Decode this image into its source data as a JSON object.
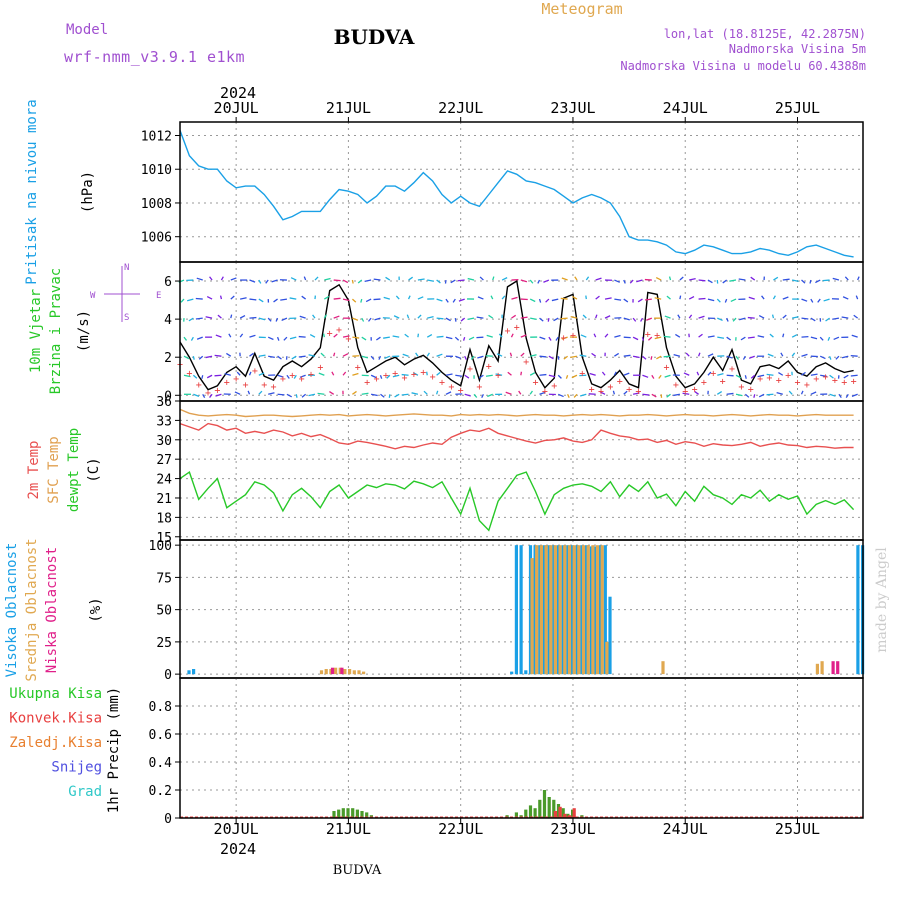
{
  "header": {
    "model_label": "Model",
    "model_name": "wrf-nmm_v3.9.1 e1km",
    "station": "BUDVA",
    "meteogram_label": "Meteogram",
    "lonlat": "lon,lat (18.8125E, 42.2875N)",
    "elevation": "Nadmorska Visina 5m",
    "model_elevation": "Nadmorska Visina u modelu 60.4388m",
    "year": "2024",
    "footer_station": "BUDVA",
    "credit": "made by Angel"
  },
  "colors": {
    "pressure": "#1aa0e6",
    "wind_speed": "#000000",
    "gust_marker": "#e84040",
    "temp2m": "#e85050",
    "sfc_temp": "#e0a050",
    "dewpoint": "#28c828",
    "cloud_high": "#1aa0e6",
    "cloud_mid": "#e0a850",
    "cloud_low": "#e0208a",
    "precip_total": "#4a9a2a",
    "precip_conv": "#e84040",
    "grid": "#999999",
    "frame": "#000000"
  },
  "chart_data": [
    {
      "id": "pressure",
      "type": "line",
      "ylabel_lines": [
        "Pritisak na nivou mora",
        "(hPa)"
      ],
      "ylim": [
        1004.5,
        1012.8
      ],
      "yticks": [
        1006,
        1008,
        1010,
        1012
      ],
      "x": [
        0,
        2,
        4,
        6,
        8,
        10,
        12,
        14,
        16,
        18,
        20,
        22,
        24,
        26,
        28,
        30,
        32,
        34,
        36,
        38,
        40,
        42,
        44,
        46,
        48,
        50,
        52,
        54,
        56,
        58,
        60,
        62,
        64,
        66,
        68,
        70,
        72,
        74,
        76,
        78,
        80,
        82,
        84,
        86,
        88,
        90,
        92,
        94,
        96,
        98,
        100,
        102,
        104,
        106,
        108,
        110,
        112,
        114,
        116,
        118,
        120,
        122,
        124,
        126,
        128,
        130,
        132,
        134,
        136,
        138,
        140,
        142,
        144
      ],
      "series": [
        {
          "values": [
            1012.3,
            1010.8,
            1010.2,
            1010.0,
            1010.0,
            1009.3,
            1008.9,
            1009.0,
            1009.0,
            1008.5,
            1007.8,
            1007.0,
            1007.2,
            1007.5,
            1007.5,
            1007.5,
            1008.2,
            1008.8,
            1008.7,
            1008.5,
            1008.0,
            1008.4,
            1009.0,
            1009.0,
            1008.7,
            1009.2,
            1009.8,
            1009.3,
            1008.5,
            1008.0,
            1008.4,
            1008.0,
            1007.8,
            1008.5,
            1009.2,
            1009.9,
            1009.7,
            1009.3,
            1009.2,
            1009.0,
            1008.8,
            1008.4,
            1008.0,
            1008.3,
            1008.5,
            1008.3,
            1008.0,
            1007.2,
            1006.0,
            1005.8,
            1005.8,
            1005.7,
            1005.5,
            1005.1,
            1005.0,
            1005.2,
            1005.5,
            1005.4,
            1005.2,
            1005.0,
            1005.0,
            1005.1,
            1005.3,
            1005.2,
            1005.0,
            1004.9,
            1005.1,
            1005.4,
            1005.5,
            1005.3,
            1005.1,
            1004.9,
            1004.8
          ]
        }
      ]
    },
    {
      "id": "wind",
      "type": "line",
      "ylabel_lines": [
        "10m Vjetar",
        "Brzina i Pravac",
        "(m/s)"
      ],
      "compass": {
        "w": "W",
        "e": "E",
        "n": "N",
        "s": "S"
      },
      "ylim": [
        -0.3,
        7.0
      ],
      "yticks": [
        0,
        2,
        4,
        6
      ],
      "x": [
        0,
        2,
        4,
        6,
        8,
        10,
        12,
        14,
        16,
        18,
        20,
        22,
        24,
        26,
        28,
        30,
        32,
        34,
        36,
        38,
        40,
        42,
        44,
        46,
        48,
        50,
        52,
        54,
        56,
        58,
        60,
        62,
        64,
        66,
        68,
        70,
        72,
        74,
        76,
        78,
        80,
        82,
        84,
        86,
        88,
        90,
        92,
        94,
        96,
        98,
        100,
        102,
        104,
        106,
        108,
        110,
        112,
        114,
        116,
        118,
        120,
        122,
        124,
        126,
        128,
        130,
        132,
        134,
        136,
        138,
        140,
        142,
        144
      ],
      "series": [
        {
          "name": "speed",
          "values": [
            2.8,
            2.0,
            1.0,
            0.3,
            0.5,
            1.2,
            1.5,
            1.0,
            2.2,
            1.0,
            0.8,
            1.5,
            1.8,
            1.5,
            1.9,
            2.5,
            5.5,
            5.8,
            5.0,
            2.5,
            1.2,
            1.5,
            1.8,
            2.0,
            1.6,
            1.9,
            2.1,
            1.7,
            1.2,
            0.8,
            0.5,
            2.4,
            0.8,
            2.6,
            1.8,
            5.7,
            6.0,
            3.0,
            1.2,
            0.4,
            0.9,
            5.1,
            5.3,
            2.0,
            0.6,
            0.4,
            0.8,
            1.3,
            0.6,
            0.4,
            5.4,
            5.3,
            2.5,
            1.0,
            0.4,
            0.6,
            1.2,
            2.0,
            1.3,
            2.4,
            0.8,
            0.6,
            1.5,
            1.6,
            1.4,
            1.8,
            1.2,
            1.0,
            1.5,
            1.7,
            1.4,
            1.2,
            1.3
          ]
        }
      ]
    },
    {
      "id": "temperature",
      "type": "line",
      "ylabel_lines": [
        "2m Temp",
        "SFC Temp",
        "dewpt Temp",
        "(C)"
      ],
      "ylim": [
        14.5,
        36.0
      ],
      "yticks": [
        15,
        18,
        21,
        24,
        27,
        30,
        33,
        36
      ],
      "x": [
        0,
        2,
        4,
        6,
        8,
        10,
        12,
        14,
        16,
        18,
        20,
        22,
        24,
        26,
        28,
        30,
        32,
        34,
        36,
        38,
        40,
        42,
        44,
        46,
        48,
        50,
        52,
        54,
        56,
        58,
        60,
        62,
        64,
        66,
        68,
        70,
        72,
        74,
        76,
        78,
        80,
        82,
        84,
        86,
        88,
        90,
        92,
        94,
        96,
        98,
        100,
        102,
        104,
        106,
        108,
        110,
        112,
        114,
        116,
        118,
        120,
        122,
        124,
        126,
        128,
        130,
        132,
        134,
        136,
        138,
        140,
        142,
        144
      ],
      "series": [
        {
          "name": "2m Temp",
          "values": [
            32.5,
            32.0,
            31.5,
            32.5,
            32.2,
            31.5,
            31.8,
            31.0,
            31.3,
            31.0,
            31.5,
            31.2,
            30.6,
            31.0,
            30.5,
            30.8,
            30.2,
            29.5,
            29.3,
            29.8,
            29.6,
            29.3,
            29.0,
            28.6,
            29.0,
            28.8,
            29.2,
            29.5,
            29.3,
            30.4,
            31.0,
            31.5,
            31.3,
            31.8,
            31.0,
            30.6,
            30.2,
            29.8,
            29.5,
            29.9,
            30.0,
            30.3,
            29.8,
            29.6,
            30.0,
            31.5,
            31.0,
            30.6,
            30.4,
            30.0,
            30.1,
            29.6,
            29.9,
            29.3,
            29.7,
            29.5,
            29.0,
            29.4,
            29.2,
            29.1,
            29.3,
            29.6,
            29.0,
            29.3,
            29.5,
            29.2,
            29.1,
            28.8,
            29.0,
            28.9,
            28.7,
            28.8,
            28.8
          ]
        },
        {
          "name": "SFC Temp",
          "values": [
            34.7,
            34.1,
            33.8,
            33.7,
            33.8,
            33.9,
            33.8,
            33.6,
            33.7,
            33.8,
            33.8,
            33.7,
            33.6,
            33.7,
            33.8,
            33.9,
            33.8,
            33.9,
            33.7,
            33.8,
            33.9,
            33.8,
            33.7,
            33.8,
            33.9,
            34.0,
            33.9,
            33.8,
            33.8,
            33.7,
            33.9,
            33.8,
            33.9,
            33.8,
            33.9,
            33.8,
            33.7,
            33.8,
            33.9,
            33.8,
            33.8,
            33.7,
            33.8,
            33.9,
            33.8,
            33.9,
            33.8,
            33.7,
            33.8,
            33.8,
            33.9,
            33.8,
            33.7,
            33.8,
            33.9,
            33.8,
            33.8,
            33.7,
            33.8,
            33.9,
            33.8,
            33.7,
            33.8,
            33.9,
            33.8,
            33.8,
            33.7,
            33.8,
            33.9,
            33.8,
            33.8,
            33.8,
            33.8
          ]
        },
        {
          "name": "dewpt Temp",
          "values": [
            24.0,
            25.0,
            20.8,
            22.5,
            24.0,
            19.5,
            20.5,
            21.5,
            23.5,
            23.0,
            21.8,
            19.0,
            21.5,
            22.5,
            21.2,
            19.5,
            22.0,
            23.0,
            21.0,
            22.0,
            23.0,
            22.6,
            23.2,
            23.0,
            22.4,
            23.6,
            23.2,
            22.6,
            23.5,
            21.0,
            18.5,
            22.5,
            17.5,
            16.0,
            20.5,
            22.5,
            24.5,
            25.0,
            22.0,
            18.5,
            21.5,
            22.5,
            23.0,
            23.2,
            22.8,
            22.0,
            23.5,
            21.2,
            23.0,
            22.0,
            23.5,
            21.0,
            21.6,
            19.8,
            22.0,
            20.5,
            22.8,
            21.5,
            21.0,
            20.0,
            21.5,
            21.0,
            22.2,
            20.5,
            21.5,
            20.8,
            21.3,
            18.5,
            20.0,
            20.6,
            20.0,
            20.7,
            19.2
          ]
        }
      ]
    },
    {
      "id": "clouds",
      "type": "bar",
      "ylabel_lines": [
        "Visoka Oblacnost",
        "Srednja Oblacnost",
        "Niska Oblacnost",
        "(%)"
      ],
      "ylim": [
        -3,
        104
      ],
      "yticks": [
        0,
        25,
        50,
        75,
        100
      ],
      "x": [
        2,
        3,
        30,
        31,
        32,
        33,
        34,
        35,
        36,
        37,
        38,
        39,
        71,
        72,
        73,
        74,
        75,
        76,
        77,
        78,
        79,
        80,
        81,
        82,
        83,
        84,
        85,
        86,
        87,
        88,
        89,
        90,
        91,
        92,
        96,
        103,
        136,
        137,
        139,
        140,
        141,
        142,
        145,
        146
      ],
      "series": [
        {
          "name": "Visoka Oblacnost",
          "values": [
            3,
            4,
            0,
            0,
            0,
            0,
            0,
            0,
            0,
            0,
            0,
            0,
            2,
            100,
            100,
            3,
            100,
            100,
            100,
            100,
            100,
            100,
            100,
            100,
            100,
            100,
            100,
            100,
            100,
            99,
            99,
            100,
            100,
            60,
            0,
            0,
            0,
            0,
            0,
            0,
            0,
            0,
            100,
            100
          ]
        },
        {
          "name": "Srednja Oblacnost",
          "values": [
            0,
            0,
            3,
            4,
            4,
            5,
            5,
            4,
            4,
            3,
            3,
            2,
            0,
            0,
            0,
            0,
            90,
            100,
            100,
            100,
            100,
            100,
            100,
            100,
            100,
            100,
            100,
            100,
            100,
            100,
            100,
            100,
            25,
            0,
            0,
            10,
            8,
            10,
            0,
            0,
            0,
            0,
            0,
            0
          ]
        },
        {
          "name": "Niska Oblacnost",
          "values": [
            0,
            0,
            0,
            0,
            5,
            0,
            5,
            0,
            0,
            0,
            0,
            0,
            0,
            0,
            0,
            0,
            0,
            0,
            0,
            0,
            0,
            0,
            0,
            0,
            0,
            0,
            0,
            0,
            0,
            0,
            0,
            0,
            0,
            0,
            0,
            0,
            0,
            0,
            10,
            10,
            0,
            0,
            0,
            0
          ]
        }
      ]
    },
    {
      "id": "precip",
      "type": "bar",
      "ylabel_lines": [
        "1hr Precip (mm)"
      ],
      "legend": [
        "Ukupna Kisa",
        "Konvek.Kisa",
        "Zaledj.Kisa",
        "Snijeg",
        "Grad"
      ],
      "legend_colors": [
        "#28c828",
        "#e84040",
        "#e88030",
        "#5050e0",
        "#30c8c8"
      ],
      "ylim": [
        0,
        1.0
      ],
      "yticks": [
        0,
        0.2,
        0.4,
        0.6,
        0.8
      ],
      "x": [
        7,
        33,
        34,
        35,
        36,
        37,
        38,
        39,
        40,
        41,
        70,
        72,
        73,
        74,
        75,
        76,
        77,
        78,
        79,
        80,
        81,
        82,
        83,
        84,
        85,
        86
      ],
      "series": [
        {
          "name": "Ukupna Kisa",
          "values": [
            0.01,
            0.05,
            0.06,
            0.07,
            0.07,
            0.07,
            0.06,
            0.05,
            0.04,
            0.02,
            0.02,
            0.04,
            0.02,
            0.06,
            0.09,
            0.07,
            0.13,
            0.2,
            0.15,
            0.13,
            0.1,
            0.07,
            0.03,
            0.06,
            0.01,
            0.02
          ]
        },
        {
          "name": "Konvek.Kisa",
          "values": [
            0,
            0,
            0,
            0,
            0,
            0,
            0,
            0,
            0,
            0,
            0,
            0,
            0,
            0,
            0,
            0,
            0,
            0,
            0,
            0.05,
            0.08,
            0.03,
            0.02,
            0.07,
            0,
            0
          ]
        }
      ]
    }
  ],
  "date_axis": {
    "labels": [
      "20JUL",
      "21JUL",
      "22JUL",
      "23JUL",
      "24JUL",
      "25JUL"
    ],
    "hours": [
      12,
      36,
      60,
      84,
      108,
      132
    ]
  }
}
